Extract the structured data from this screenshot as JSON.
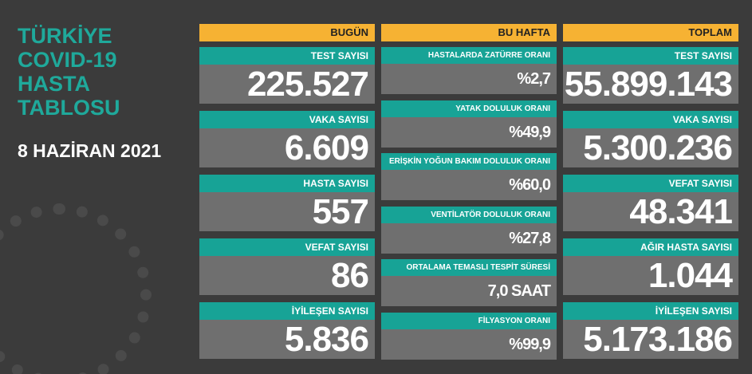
{
  "header": {
    "title_lines": [
      "TÜRKİYE",
      "COVID-19",
      "HASTA",
      "TABLOSU"
    ],
    "date": "8 HAZİRAN 2021"
  },
  "columns": [
    {
      "title": "BUGÜN",
      "cards": [
        {
          "label": "TEST SAYISI",
          "value": "225.527"
        },
        {
          "label": "VAKA SAYISI",
          "value": "6.609"
        },
        {
          "label": "HASTA SAYISI",
          "value": "557"
        },
        {
          "label": "VEFAT SAYISI",
          "value": "86"
        },
        {
          "label": "İYİLEŞEN SAYISI",
          "value": "5.836"
        }
      ]
    },
    {
      "title": "BU HAFTA",
      "cards": [
        {
          "label": "HASTALARDA ZATÜRRE ORANI",
          "value": "%2,7"
        },
        {
          "label": "YATAK DOLULUK ORANI",
          "value": "%49,9"
        },
        {
          "label": "ERİŞKİN YOĞUN BAKIM DOLULUK ORANI",
          "value": "%60,0"
        },
        {
          "label": "VENTİLATÖR DOLULUK ORANI",
          "value": "%27,8"
        },
        {
          "label": "ORTALAMA TEMASLI TESPİT SÜRESİ",
          "value": "7,0 SAAT"
        },
        {
          "label": "FİLYASYON ORANI",
          "value": "%99,9"
        }
      ]
    },
    {
      "title": "TOPLAM",
      "cards": [
        {
          "label": "TEST SAYISI",
          "value": "55.899.143"
        },
        {
          "label": "VAKA SAYISI",
          "value": "5.300.236"
        },
        {
          "label": "VEFAT SAYISI",
          "value": "48.341"
        },
        {
          "label": "AĞIR HASTA SAYISI",
          "value": "1.044"
        },
        {
          "label": "İYİLEŞEN SAYISI",
          "value": "5.173.186"
        }
      ]
    }
  ]
}
